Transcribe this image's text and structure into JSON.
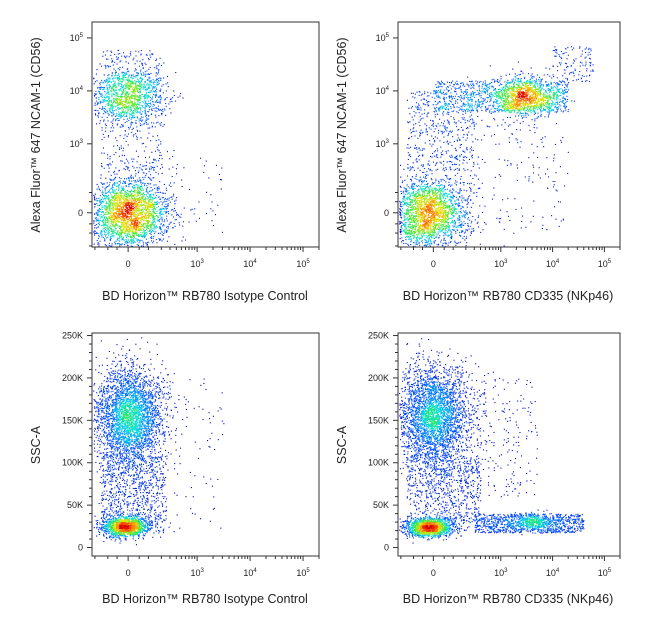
{
  "chart_data": [
    {
      "type": "scatter",
      "title": "",
      "xlabel": "BD Horizon™ RB780 Isotype Control",
      "ylabel": "Alexa Fluor™ 647 NCAM-1 (CD56)",
      "xscale": "biexponential",
      "yscale": "biexponential",
      "xlim": [
        -230,
        200000
      ],
      "ylim": [
        -210,
        200000
      ],
      "xticks": [
        {
          "value": 0,
          "base": "0",
          "exp": ""
        },
        {
          "value": 1000,
          "base": "10",
          "exp": "3"
        },
        {
          "value": 10000,
          "base": "10",
          "exp": "4"
        },
        {
          "value": 100000,
          "base": "10",
          "exp": "5"
        }
      ],
      "yticks": [
        {
          "value": 0,
          "base": "0",
          "exp": ""
        },
        {
          "value": 1000,
          "base": "10",
          "exp": "3"
        },
        {
          "value": 10000,
          "base": "10",
          "exp": "4"
        },
        {
          "value": 100000,
          "base": "10",
          "exp": "5"
        }
      ],
      "populations": [
        {
          "kind": "gauss",
          "x": 0,
          "y": 0,
          "sx": 0.85,
          "sy": 0.8,
          "n": 2600
        },
        {
          "kind": "gauss",
          "x": 0,
          "y": 8000,
          "sx": 0.8,
          "sy": 0.6,
          "n": 1200
        },
        {
          "kind": "uniform",
          "x": [
            -150,
            200
          ],
          "y": [
            300,
            60000
          ],
          "n": 350
        },
        {
          "kind": "uniform",
          "x": [
            100,
            3000
          ],
          "y": [
            -100,
            800
          ],
          "n": 60
        }
      ]
    },
    {
      "type": "scatter",
      "title": "",
      "xlabel": "BD Horizon™ RB780 CD335 (NKp46)",
      "ylabel": "Alexa Fluor™ 647 NCAM-1 (CD56)",
      "xscale": "biexponential",
      "yscale": "biexponential",
      "xlim": [
        -230,
        200000
      ],
      "ylim": [
        -210,
        200000
      ],
      "xticks": [
        {
          "value": 0,
          "base": "0",
          "exp": ""
        },
        {
          "value": 1000,
          "base": "10",
          "exp": "3"
        },
        {
          "value": 10000,
          "base": "10",
          "exp": "4"
        },
        {
          "value": 100000,
          "base": "10",
          "exp": "5"
        }
      ],
      "yticks": [
        {
          "value": 0,
          "base": "0",
          "exp": ""
        },
        {
          "value": 1000,
          "base": "10",
          "exp": "3"
        },
        {
          "value": 10000,
          "base": "10",
          "exp": "4"
        },
        {
          "value": 100000,
          "base": "10",
          "exp": "5"
        }
      ],
      "populations": [
        {
          "kind": "gauss",
          "x": -20,
          "y": 0,
          "sx": 0.85,
          "sy": 0.8,
          "n": 2400
        },
        {
          "kind": "gauss",
          "x": 3000,
          "y": 8000,
          "sx": 0.7,
          "sy": 0.45,
          "n": 1000
        },
        {
          "kind": "uniform",
          "x": [
            0,
            20000
          ],
          "y": [
            4000,
            16000
          ],
          "n": 900
        },
        {
          "kind": "uniform",
          "x": [
            -150,
            300
          ],
          "y": [
            300,
            10000
          ],
          "n": 450
        },
        {
          "kind": "uniform",
          "x": [
            10000,
            60000
          ],
          "y": [
            15000,
            70000
          ],
          "n": 120
        },
        {
          "kind": "uniform",
          "x": [
            200,
            20000
          ],
          "y": [
            -100,
            3000
          ],
          "n": 150
        }
      ]
    },
    {
      "type": "scatter",
      "title": "",
      "xlabel": "BD Horizon™ RB780 Isotype Control",
      "ylabel": "SSC-A",
      "xscale": "biexponential",
      "yscale": "linear",
      "xlim": [
        -230,
        200000
      ],
      "ylim": [
        -10000,
        253000
      ],
      "xticks": [
        {
          "value": 0,
          "base": "0",
          "exp": ""
        },
        {
          "value": 1000,
          "base": "10",
          "exp": "3"
        },
        {
          "value": 10000,
          "base": "10",
          "exp": "4"
        },
        {
          "value": 100000,
          "base": "10",
          "exp": "5"
        }
      ],
      "yticks": [
        {
          "value": 0,
          "base": "0",
          "exp": ""
        },
        {
          "value": 50000,
          "base": "50K",
          "exp": ""
        },
        {
          "value": 100000,
          "base": "100K",
          "exp": ""
        },
        {
          "value": 150000,
          "base": "150K",
          "exp": ""
        },
        {
          "value": 200000,
          "base": "200K",
          "exp": ""
        },
        {
          "value": 250000,
          "base": "250K",
          "exp": ""
        }
      ],
      "populations": [
        {
          "kind": "gauss",
          "x": 0,
          "y": 155000,
          "sx": 0.75,
          "sy": 30000,
          "n": 3200
        },
        {
          "kind": "gauss",
          "x": -10,
          "y": 25000,
          "sx": 0.55,
          "sy": 6000,
          "n": 1400
        },
        {
          "kind": "uniform",
          "x": [
            -150,
            250
          ],
          "y": [
            30000,
            110000
          ],
          "n": 700
        },
        {
          "kind": "uniform",
          "x": [
            100,
            3000
          ],
          "y": [
            20000,
            200000
          ],
          "n": 90
        }
      ]
    },
    {
      "type": "scatter",
      "title": "",
      "xlabel": "BD Horizon™ RB780 CD335 (NKp46)",
      "ylabel": "SSC-A",
      "xscale": "biexponential",
      "yscale": "linear",
      "xlim": [
        -230,
        200000
      ],
      "ylim": [
        -10000,
        253000
      ],
      "xticks": [
        {
          "value": 0,
          "base": "0",
          "exp": ""
        },
        {
          "value": 1000,
          "base": "10",
          "exp": "3"
        },
        {
          "value": 10000,
          "base": "10",
          "exp": "4"
        },
        {
          "value": 100000,
          "base": "10",
          "exp": "5"
        }
      ],
      "yticks": [
        {
          "value": 0,
          "base": "0",
          "exp": ""
        },
        {
          "value": 50000,
          "base": "50K",
          "exp": ""
        },
        {
          "value": 100000,
          "base": "100K",
          "exp": ""
        },
        {
          "value": 150000,
          "base": "150K",
          "exp": ""
        },
        {
          "value": 200000,
          "base": "200K",
          "exp": ""
        },
        {
          "value": 250000,
          "base": "250K",
          "exp": ""
        }
      ],
      "populations": [
        {
          "kind": "gauss",
          "x": 0,
          "y": 155000,
          "sx": 0.8,
          "sy": 30000,
          "n": 3200
        },
        {
          "kind": "gauss",
          "x": -20,
          "y": 24000,
          "sx": 0.55,
          "sy": 5500,
          "n": 1400
        },
        {
          "kind": "uniform",
          "x": [
            300,
            40000
          ],
          "y": [
            18000,
            40000
          ],
          "n": 900
        },
        {
          "kind": "gauss",
          "x": 4000,
          "y": 30000,
          "sx": 0.6,
          "sy": 5000,
          "n": 350
        },
        {
          "kind": "uniform",
          "x": [
            -150,
            400
          ],
          "y": [
            30000,
            110000
          ],
          "n": 700
        },
        {
          "kind": "uniform",
          "x": [
            200,
            5000
          ],
          "y": [
            60000,
            200000
          ],
          "n": 200
        }
      ]
    }
  ],
  "colors": {
    "frame": "#333333",
    "low": "#0000c8",
    "high": "#e00000"
  }
}
